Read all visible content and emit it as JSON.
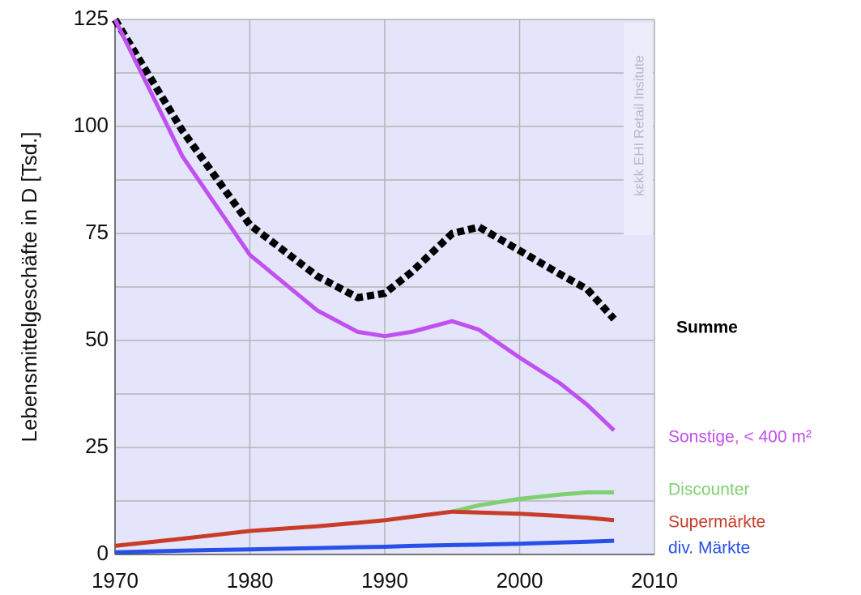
{
  "chart_data": {
    "type": "line",
    "ylabel": "Lebensmittelgeschäfte in D  [Tsd.]",
    "watermark": "kεkk  EHI Retail Insitute",
    "x": [
      1970,
      1975,
      1980,
      1985,
      1988,
      1990,
      1992,
      1995,
      1997,
      2000,
      2003,
      2005,
      2007
    ],
    "series": [
      {
        "name": "Summe",
        "color": "#000000",
        "dashed": true,
        "values": [
          125,
          99,
          77,
          65,
          60,
          61,
          66,
          75,
          76.5,
          71,
          65.5,
          62,
          55
        ]
      },
      {
        "name": "Sonstige, < 400 m²",
        "color": "#c050f0",
        "values": [
          125,
          93,
          70,
          57,
          52,
          51,
          52,
          54.5,
          52.5,
          46,
          40,
          35,
          29
        ]
      },
      {
        "name": "Discounter",
        "color": "#80d070",
        "values": [
          null,
          null,
          null,
          null,
          null,
          null,
          null,
          10,
          11.5,
          13,
          14,
          14.5,
          14.5
        ]
      },
      {
        "name": "Supermärkte",
        "color": "#c83c28",
        "values": [
          2,
          3.7,
          5.5,
          6.6,
          7.4,
          8,
          8.8,
          10,
          9.8,
          9.5,
          9,
          8.6,
          8
        ]
      },
      {
        "name": "div. Märkte",
        "color": "#2850e8",
        "values": [
          0.5,
          0.9,
          1.2,
          1.5,
          1.7,
          1.8,
          2,
          2.2,
          2.3,
          2.5,
          2.8,
          3,
          3.2
        ]
      }
    ],
    "xlim": [
      1970,
      2010
    ],
    "xticks": [
      1970,
      1980,
      1990,
      2000,
      2010
    ],
    "ylim": [
      0,
      125
    ],
    "yticks": [
      0,
      25,
      50,
      75,
      100,
      125
    ],
    "minor_yticks": [
      12.5,
      37.5,
      62.5,
      87.5,
      112.5
    ],
    "grid": true
  }
}
